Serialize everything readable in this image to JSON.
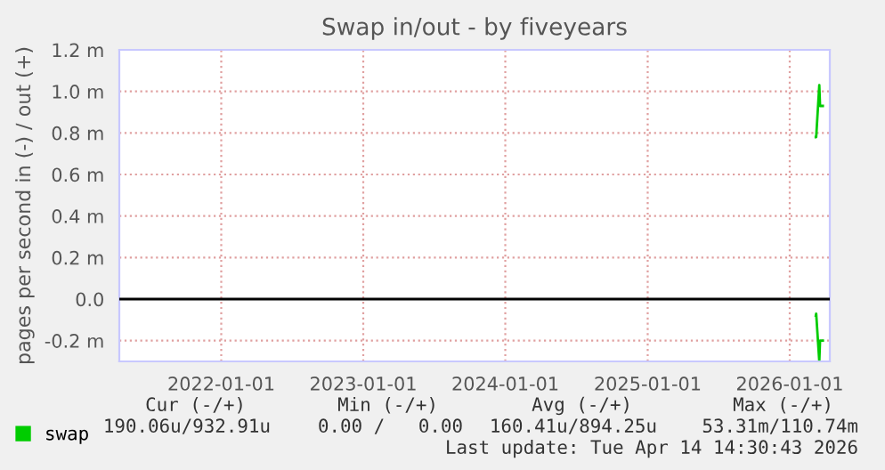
{
  "chart_data": {
    "type": "line",
    "title": "Swap in/out - by fiveyears",
    "ylabel": "pages per second in (-) / out (+)",
    "xlim": [
      "2021-04-14",
      "2026-04-14"
    ],
    "xticks": [
      {
        "value": "2022-01-01",
        "label": "2022-01-01"
      },
      {
        "value": "2023-01-01",
        "label": "2023-01-01"
      },
      {
        "value": "2024-01-01",
        "label": "2024-01-01"
      },
      {
        "value": "2025-01-01",
        "label": "2025-01-01"
      },
      {
        "value": "2026-01-01",
        "label": "2026-01-01"
      }
    ],
    "ylim": [
      -0.3,
      1.2
    ],
    "yticks": [
      {
        "value": -0.2,
        "label": "-0.2 m"
      },
      {
        "value": 0,
        "label": "0.0"
      },
      {
        "value": 0.2,
        "label": "0.2 m"
      },
      {
        "value": 0.4,
        "label": "0.4 m"
      },
      {
        "value": 0.6,
        "label": "0.6 m"
      },
      {
        "value": 0.8,
        "label": "0.8 m"
      },
      {
        "value": 1.0,
        "label": "1.0 m"
      },
      {
        "value": 1.2,
        "label": "1.2 m"
      }
    ],
    "grid": true,
    "legend": "bottom left",
    "ref_lines": [
      {
        "axis": "y",
        "value": 0,
        "color": "#000000"
      }
    ],
    "series": [
      {
        "name": "swap",
        "color": "#00cc00",
        "x": [
          "2026-03-09",
          "2026-03-10",
          "2026-03-18",
          "2026-03-20",
          "2026-03-27"
        ],
        "values": [
          0.78,
          0.78,
          1.03,
          0.93,
          0.93
        ]
      },
      {
        "color": "#00cc00",
        "x": [
          "2026-03-09",
          "2026-03-10",
          "2026-03-18",
          "2026-03-20",
          "2026-03-27"
        ],
        "values": [
          -0.08,
          -0.07,
          -0.3,
          -0.2,
          -0.2
        ]
      }
    ],
    "annotations": [
      "Cur (-/+)",
      "Min (-/+)",
      "Avg (-/+)",
      "Max (-/+)",
      "190.06u/932.91u",
      "0.00 /   0.00",
      "160.41u/894.25u",
      "53.31m/110.74m",
      "Last update: Tue Apr 14 14:30:43 2026"
    ]
  }
}
